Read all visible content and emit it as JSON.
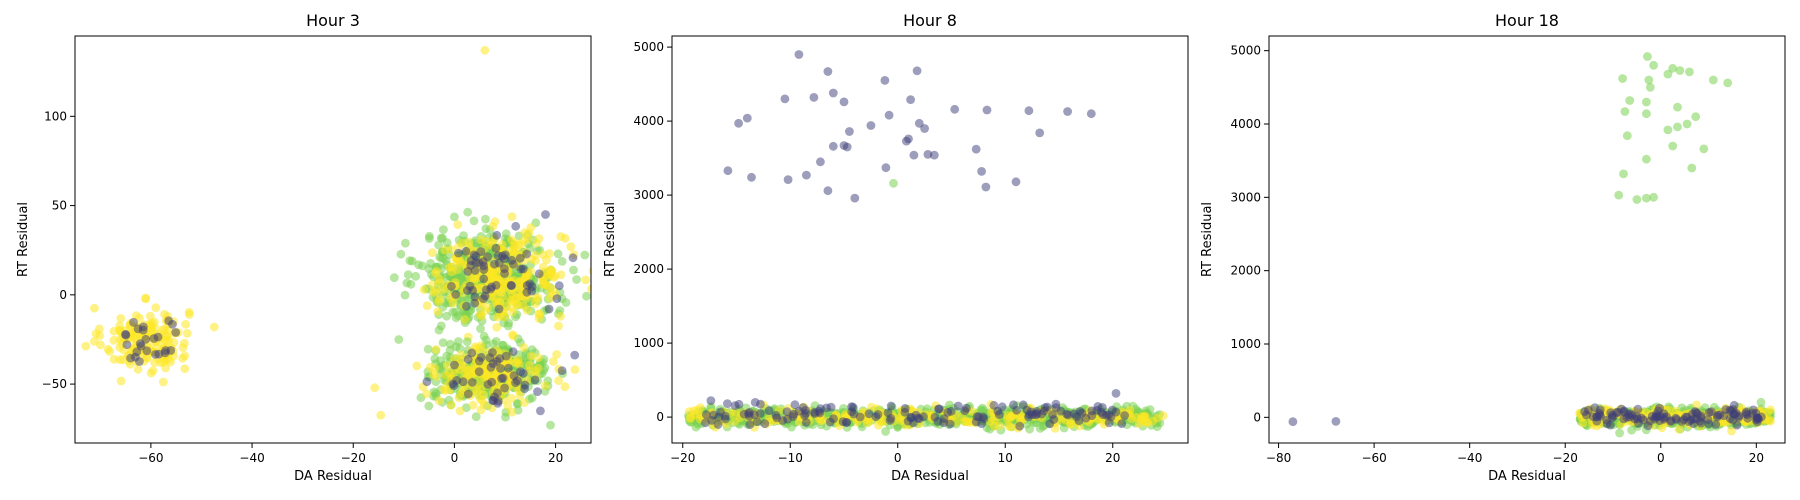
{
  "colors": {
    "purple": "#3b3b7a",
    "green": "#7ad151",
    "yellow": "#fde725"
  },
  "chart_data": [
    {
      "type": "scatter",
      "title": "Hour 3",
      "xlabel": "DA Residual",
      "ylabel": "RT Residual",
      "xlim": [
        -75,
        27
      ],
      "ylim": [
        -83,
        145
      ],
      "xticks": [
        -60,
        -40,
        -20,
        0,
        20
      ],
      "yticks": [
        -50,
        0,
        50,
        100
      ],
      "grid": false,
      "clusters": [
        {
          "color": "yellow",
          "count": 170,
          "cx": -61,
          "cy": -25,
          "sx": 4.2,
          "sy": 9
        },
        {
          "color": "purple",
          "count": 25,
          "cx": -61,
          "cy": -25,
          "sx": 3.5,
          "sy": 8
        },
        {
          "color": "green",
          "count": 520,
          "cx": 7,
          "cy": 10,
          "sx": 6.5,
          "sy": 12
        },
        {
          "color": "yellow",
          "count": 280,
          "cx": 9,
          "cy": 10,
          "sx": 6.5,
          "sy": 12
        },
        {
          "color": "purple",
          "count": 60,
          "cx": 8,
          "cy": 10,
          "sx": 6,
          "sy": 12
        },
        {
          "color": "green",
          "count": 360,
          "cx": 7,
          "cy": -44,
          "sx": 5.5,
          "sy": 8
        },
        {
          "color": "yellow",
          "count": 190,
          "cx": 7,
          "cy": -45,
          "sx": 5.5,
          "sy": 8
        },
        {
          "color": "purple",
          "count": 45,
          "cx": 8,
          "cy": -45,
          "sx": 5,
          "sy": 8
        }
      ],
      "points": [
        {
          "x": 6,
          "y": 137,
          "color": "yellow"
        },
        {
          "x": 18,
          "y": 45,
          "color": "purple"
        },
        {
          "x": 21,
          "y": -12,
          "color": "yellow"
        },
        {
          "x": 19,
          "y": -73,
          "color": "green"
        },
        {
          "x": 17,
          "y": -65,
          "color": "purple"
        },
        {
          "x": -11,
          "y": -25,
          "color": "green"
        },
        {
          "x": 23,
          "y": 27,
          "color": "yellow"
        }
      ]
    },
    {
      "type": "scatter",
      "title": "Hour 8",
      "xlabel": "DA Residual",
      "ylabel": "RT Residual",
      "xlim": [
        -21,
        27
      ],
      "ylim": [
        -350,
        5150
      ],
      "xticks": [
        -20,
        -10,
        0,
        10,
        20
      ],
      "yticks": [
        0,
        1000,
        2000,
        3000,
        4000,
        5000
      ],
      "grid": false,
      "clusters": [
        {
          "color": "green",
          "count": 700,
          "cx": 2,
          "cy": 0,
          "sx": 10.5,
          "sy": 60,
          "xmin": -19.5,
          "xmax": 24.5
        },
        {
          "color": "yellow",
          "count": 230,
          "cx": 2,
          "cy": 0,
          "sx": 10.5,
          "sy": 60,
          "xmin": -19.5,
          "xmax": 24.5
        },
        {
          "color": "purple",
          "count": 140,
          "cx": 1,
          "cy": 30,
          "sx": 9,
          "sy": 70,
          "xmin": -18,
          "xmax": 22
        }
      ],
      "points": [
        {
          "x": -9.2,
          "y": 4900,
          "color": "purple"
        },
        {
          "x": 1.8,
          "y": 4680,
          "color": "purple"
        },
        {
          "x": -6.5,
          "y": 4670,
          "color": "purple"
        },
        {
          "x": -1.2,
          "y": 4550,
          "color": "purple"
        },
        {
          "x": -6,
          "y": 4380,
          "color": "purple"
        },
        {
          "x": -10.5,
          "y": 4300,
          "color": "purple"
        },
        {
          "x": -7.8,
          "y": 4320,
          "color": "purple"
        },
        {
          "x": 1.2,
          "y": 4290,
          "color": "purple"
        },
        {
          "x": -5,
          "y": 4260,
          "color": "purple"
        },
        {
          "x": 5.3,
          "y": 4160,
          "color": "purple"
        },
        {
          "x": 8.3,
          "y": 4150,
          "color": "purple"
        },
        {
          "x": 12.2,
          "y": 4140,
          "color": "purple"
        },
        {
          "x": 15.8,
          "y": 4130,
          "color": "purple"
        },
        {
          "x": 18,
          "y": 4100,
          "color": "purple"
        },
        {
          "x": -0.8,
          "y": 4080,
          "color": "purple"
        },
        {
          "x": -14,
          "y": 4040,
          "color": "purple"
        },
        {
          "x": -14.8,
          "y": 3970,
          "color": "purple"
        },
        {
          "x": 2,
          "y": 3970,
          "color": "purple"
        },
        {
          "x": -2.5,
          "y": 3940,
          "color": "purple"
        },
        {
          "x": 2.5,
          "y": 3900,
          "color": "purple"
        },
        {
          "x": -4.5,
          "y": 3860,
          "color": "purple"
        },
        {
          "x": 13.2,
          "y": 3840,
          "color": "purple"
        },
        {
          "x": 1,
          "y": 3760,
          "color": "purple"
        },
        {
          "x": 0.8,
          "y": 3730,
          "color": "purple"
        },
        {
          "x": -6,
          "y": 3660,
          "color": "purple"
        },
        {
          "x": -5,
          "y": 3670,
          "color": "purple"
        },
        {
          "x": -4.7,
          "y": 3650,
          "color": "purple"
        },
        {
          "x": 7.3,
          "y": 3620,
          "color": "purple"
        },
        {
          "x": 1.5,
          "y": 3540,
          "color": "purple"
        },
        {
          "x": 2.8,
          "y": 3550,
          "color": "purple"
        },
        {
          "x": 3.4,
          "y": 3540,
          "color": "purple"
        },
        {
          "x": -7.2,
          "y": 3450,
          "color": "purple"
        },
        {
          "x": -1.1,
          "y": 3370,
          "color": "purple"
        },
        {
          "x": -15.8,
          "y": 3330,
          "color": "purple"
        },
        {
          "x": 7.8,
          "y": 3320,
          "color": "purple"
        },
        {
          "x": -8.5,
          "y": 3270,
          "color": "purple"
        },
        {
          "x": -13.6,
          "y": 3240,
          "color": "purple"
        },
        {
          "x": -10.2,
          "y": 3210,
          "color": "purple"
        },
        {
          "x": 11,
          "y": 3180,
          "color": "purple"
        },
        {
          "x": -0.4,
          "y": 3160,
          "color": "green"
        },
        {
          "x": 8.2,
          "y": 3110,
          "color": "purple"
        },
        {
          "x": -6.5,
          "y": 3060,
          "color": "purple"
        },
        {
          "x": -4,
          "y": 2960,
          "color": "purple"
        },
        {
          "x": 20.3,
          "y": 320,
          "color": "purple"
        },
        {
          "x": 24.7,
          "y": 20,
          "color": "yellow"
        },
        {
          "x": -19.3,
          "y": -20,
          "color": "yellow"
        }
      ]
    },
    {
      "type": "scatter",
      "title": "Hour 18",
      "xlabel": "DA Residual",
      "ylabel": "RT Residual",
      "xlim": [
        -82,
        26
      ],
      "ylim": [
        -350,
        5200
      ],
      "xticks": [
        -80,
        -60,
        -40,
        -20,
        0,
        20
      ],
      "yticks": [
        0,
        1000,
        2000,
        3000,
        4000,
        5000
      ],
      "grid": false,
      "clusters": [
        {
          "color": "green",
          "count": 600,
          "cx": 3,
          "cy": 0,
          "sx": 7.5,
          "sy": 55,
          "xmin": -17,
          "xmax": 23
        },
        {
          "color": "yellow",
          "count": 200,
          "cx": 4,
          "cy": 10,
          "sx": 7.5,
          "sy": 55,
          "xmin": -17,
          "xmax": 23
        },
        {
          "color": "purple",
          "count": 110,
          "cx": 2,
          "cy": 20,
          "sx": 7,
          "sy": 60,
          "xmin": -16,
          "xmax": 22
        }
      ],
      "points": [
        {
          "x": -77,
          "y": -60,
          "color": "purple"
        },
        {
          "x": -68,
          "y": -55,
          "color": "purple"
        },
        {
          "x": -2.8,
          "y": 4920,
          "color": "green"
        },
        {
          "x": -1.5,
          "y": 4800,
          "color": "green"
        },
        {
          "x": 2.5,
          "y": 4760,
          "color": "green"
        },
        {
          "x": 4,
          "y": 4730,
          "color": "green"
        },
        {
          "x": 6,
          "y": 4710,
          "color": "green"
        },
        {
          "x": 1.5,
          "y": 4680,
          "color": "green"
        },
        {
          "x": -8,
          "y": 4620,
          "color": "green"
        },
        {
          "x": 11,
          "y": 4600,
          "color": "green"
        },
        {
          "x": -2.5,
          "y": 4600,
          "color": "green"
        },
        {
          "x": 14,
          "y": 4560,
          "color": "green"
        },
        {
          "x": -2.2,
          "y": 4500,
          "color": "green"
        },
        {
          "x": -6.5,
          "y": 4320,
          "color": "green"
        },
        {
          "x": -3,
          "y": 4300,
          "color": "green"
        },
        {
          "x": 3.5,
          "y": 4230,
          "color": "green"
        },
        {
          "x": -7.5,
          "y": 4170,
          "color": "green"
        },
        {
          "x": -3,
          "y": 4140,
          "color": "green"
        },
        {
          "x": 7.3,
          "y": 4100,
          "color": "green"
        },
        {
          "x": 5.5,
          "y": 4000,
          "color": "green"
        },
        {
          "x": 3.5,
          "y": 3960,
          "color": "green"
        },
        {
          "x": 1.5,
          "y": 3920,
          "color": "green"
        },
        {
          "x": -7,
          "y": 3840,
          "color": "green"
        },
        {
          "x": 2.5,
          "y": 3700,
          "color": "green"
        },
        {
          "x": 9,
          "y": 3660,
          "color": "green"
        },
        {
          "x": -3,
          "y": 3520,
          "color": "green"
        },
        {
          "x": 6.5,
          "y": 3400,
          "color": "green"
        },
        {
          "x": -7.8,
          "y": 3320,
          "color": "green"
        },
        {
          "x": -8.8,
          "y": 3030,
          "color": "green"
        },
        {
          "x": -1.5,
          "y": 3000,
          "color": "green"
        },
        {
          "x": -5,
          "y": 2970,
          "color": "green"
        },
        {
          "x": -3,
          "y": 2990,
          "color": "green"
        }
      ]
    }
  ]
}
